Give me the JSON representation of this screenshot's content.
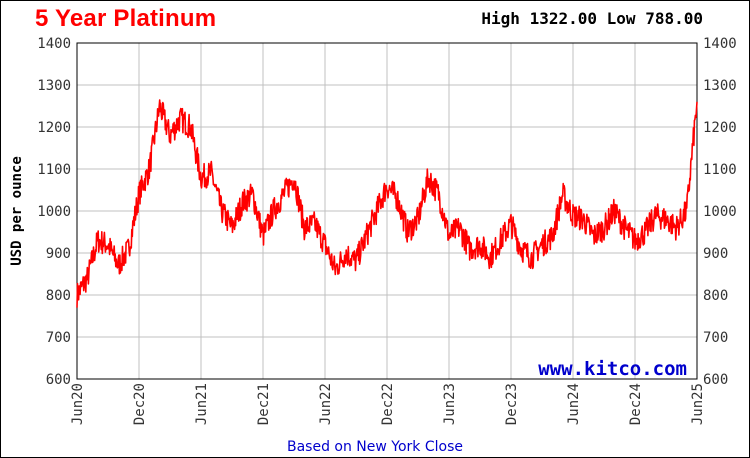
{
  "header": {
    "title": "5 Year Platinum",
    "high_label": "High",
    "high_value": "1322.00",
    "low_label": "Low",
    "low_value": "788.00"
  },
  "watermark": "www.kitco.com",
  "footer": "Based on New York Close",
  "colors": {
    "line": "#ff0000",
    "grid": "#c0c0c0",
    "title": "#ff0000",
    "watermark": "#0000cc"
  },
  "chart_data": {
    "type": "line",
    "title": "5 Year Platinum",
    "ylabel": "USD per ounce",
    "xlabel": "",
    "ylim": [
      600,
      1400
    ],
    "yticks": [
      "600",
      "700",
      "800",
      "900",
      "1000",
      "1100",
      "1200",
      "1300",
      "1400"
    ],
    "xticks": [
      "Jun20",
      "Dec20",
      "Jun21",
      "Dec21",
      "Jun22",
      "Dec22",
      "Jun23",
      "Dec23",
      "Jun24",
      "Dec24",
      "Jun25"
    ],
    "grid": true,
    "series": [
      {
        "values": [
          {
            "x": "2020-06",
            "y": 800
          },
          {
            "x": "2020-07",
            "y": 840
          },
          {
            "x": "2020-08",
            "y": 930
          },
          {
            "x": "2020-09",
            "y": 920
          },
          {
            "x": "2020-10",
            "y": 870
          },
          {
            "x": "2020-11",
            "y": 910
          },
          {
            "x": "2020-12",
            "y": 1040
          },
          {
            "x": "2021-01",
            "y": 1100
          },
          {
            "x": "2021-02",
            "y": 1250
          },
          {
            "x": "2021-03",
            "y": 1180
          },
          {
            "x": "2021-04",
            "y": 1220
          },
          {
            "x": "2021-05",
            "y": 1200
          },
          {
            "x": "2021-06",
            "y": 1080
          },
          {
            "x": "2021-07",
            "y": 1090
          },
          {
            "x": "2021-08",
            "y": 1000
          },
          {
            "x": "2021-09",
            "y": 960
          },
          {
            "x": "2021-10",
            "y": 1020
          },
          {
            "x": "2021-11",
            "y": 1040
          },
          {
            "x": "2021-12",
            "y": 940
          },
          {
            "x": "2022-01",
            "y": 1000
          },
          {
            "x": "2022-02",
            "y": 1040
          },
          {
            "x": "2022-03",
            "y": 1080
          },
          {
            "x": "2022-04",
            "y": 960
          },
          {
            "x": "2022-05",
            "y": 970
          },
          {
            "x": "2022-06",
            "y": 920
          },
          {
            "x": "2022-07",
            "y": 860
          },
          {
            "x": "2022-08",
            "y": 900
          },
          {
            "x": "2022-09",
            "y": 880
          },
          {
            "x": "2022-10",
            "y": 940
          },
          {
            "x": "2022-11",
            "y": 1000
          },
          {
            "x": "2022-12",
            "y": 1060
          },
          {
            "x": "2023-01",
            "y": 1030
          },
          {
            "x": "2023-02",
            "y": 950
          },
          {
            "x": "2023-03",
            "y": 980
          },
          {
            "x": "2023-04",
            "y": 1080
          },
          {
            "x": "2023-05",
            "y": 1040
          },
          {
            "x": "2023-06",
            "y": 940
          },
          {
            "x": "2023-07",
            "y": 960
          },
          {
            "x": "2023-08",
            "y": 910
          },
          {
            "x": "2023-09",
            "y": 920
          },
          {
            "x": "2023-10",
            "y": 890
          },
          {
            "x": "2023-11",
            "y": 930
          },
          {
            "x": "2023-12",
            "y": 970
          },
          {
            "x": "2024-01",
            "y": 910
          },
          {
            "x": "2024-02",
            "y": 890
          },
          {
            "x": "2024-03",
            "y": 920
          },
          {
            "x": "2024-04",
            "y": 940
          },
          {
            "x": "2024-05",
            "y": 1040
          },
          {
            "x": "2024-06",
            "y": 990
          },
          {
            "x": "2024-07",
            "y": 980
          },
          {
            "x": "2024-08",
            "y": 940
          },
          {
            "x": "2024-09",
            "y": 960
          },
          {
            "x": "2024-10",
            "y": 1000
          },
          {
            "x": "2024-11",
            "y": 960
          },
          {
            "x": "2024-12",
            "y": 930
          },
          {
            "x": "2025-01",
            "y": 950
          },
          {
            "x": "2025-02",
            "y": 990
          },
          {
            "x": "2025-03",
            "y": 980
          },
          {
            "x": "2025-04",
            "y": 960
          },
          {
            "x": "2025-05",
            "y": 1000
          },
          {
            "x": "2025-06",
            "y": 1260
          }
        ]
      }
    ]
  }
}
